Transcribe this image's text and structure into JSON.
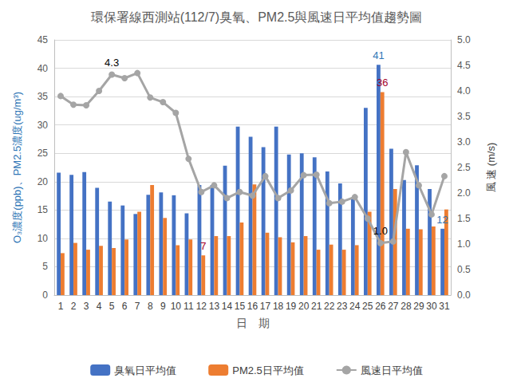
{
  "chart_data": {
    "type": "bar",
    "title": "環保署線西測站(112/7)臭氧、PM2.5與風速日平均值趨勢圖",
    "x_label": "日　期",
    "y_label": "O₃濃度(ppb)、PM2.5濃度(ug/m³)",
    "y2_label": "風 速 (m/s)",
    "categories": [
      "1",
      "2",
      "3",
      "4",
      "5",
      "6",
      "7",
      "8",
      "9",
      "10",
      "11",
      "12",
      "13",
      "14",
      "15",
      "16",
      "17",
      "18",
      "19",
      "20",
      "21",
      "22",
      "23",
      "24",
      "25",
      "26",
      "27",
      "28",
      "29",
      "30",
      "31"
    ],
    "ylim": [
      0,
      45
    ],
    "yticks": [
      0,
      5,
      10,
      15,
      20,
      25,
      30,
      35,
      40,
      45
    ],
    "y2lim": [
      0,
      5
    ],
    "y2ticks": [
      {
        "value": 0,
        "label": "0.0"
      },
      {
        "value": 0.5,
        "label": "0.5"
      },
      {
        "value": 1,
        "label": "1.0"
      },
      {
        "value": 1.5,
        "label": "1.5"
      },
      {
        "value": 2,
        "label": "2.0"
      },
      {
        "value": 2.5,
        "label": "2.5"
      },
      {
        "value": 3,
        "label": "3.0"
      },
      {
        "value": 3.5,
        "label": "3.5"
      },
      {
        "value": 4,
        "label": "4.0"
      },
      {
        "value": 4.5,
        "label": "4.5"
      },
      {
        "value": 5,
        "label": "5.0"
      }
    ],
    "grid": true,
    "legend": "bottom",
    "series": [
      {
        "name": "臭氧日平均值",
        "type": "bar",
        "color": "#4472c4",
        "values": [
          21.6,
          21.2,
          21.7,
          18.9,
          16.5,
          15.8,
          14.3,
          17.7,
          18.1,
          17.6,
          14.4,
          19.4,
          19.4,
          22.8,
          29.7,
          27.9,
          26.1,
          29.7,
          24.8,
          25.0,
          24.3,
          21.8,
          19.7,
          17.2,
          33.0,
          40.6,
          25.8,
          20.3,
          22.9,
          18.7,
          11.7
        ],
        "value_labels": [
          null,
          null,
          null,
          null,
          null,
          null,
          null,
          null,
          null,
          null,
          null,
          null,
          null,
          null,
          null,
          null,
          null,
          null,
          null,
          null,
          null,
          null,
          null,
          null,
          null,
          "41",
          null,
          null,
          null,
          null,
          "12"
        ]
      },
      {
        "name": "PM2.5日平均值",
        "type": "bar",
        "color": "#ed7d31",
        "values": [
          7.4,
          9.2,
          8.0,
          8.7,
          8.3,
          9.8,
          14.7,
          19.4,
          13.6,
          8.8,
          9.8,
          7.0,
          10.4,
          10.4,
          12.8,
          19.5,
          11.0,
          10.2,
          9.3,
          10.4,
          8.0,
          8.9,
          8.0,
          8.8,
          14.7,
          35.8,
          18.7,
          11.7,
          11.6,
          12.1,
          15.1
        ],
        "value_labels": [
          null,
          null,
          null,
          null,
          null,
          null,
          null,
          null,
          null,
          null,
          null,
          "7",
          null,
          null,
          null,
          null,
          null,
          null,
          null,
          null,
          null,
          null,
          null,
          null,
          null,
          "36",
          null,
          null,
          null,
          null,
          null
        ]
      },
      {
        "name": "風速日平均值",
        "type": "line",
        "axis": "y2",
        "color": "#a5a5a5",
        "marker": "circle",
        "line_style": "solid",
        "values": [
          3.9,
          3.73,
          3.72,
          4.0,
          4.32,
          4.25,
          4.35,
          3.87,
          3.78,
          3.57,
          2.67,
          2.02,
          2.15,
          1.9,
          2.02,
          1.95,
          2.33,
          1.9,
          2.05,
          2.35,
          2.36,
          1.8,
          1.83,
          1.92,
          1.5,
          1.02,
          1.05,
          2.8,
          2.15,
          1.58,
          2.33
        ],
        "value_labels": [
          null,
          null,
          null,
          null,
          "4.3",
          null,
          null,
          null,
          null,
          null,
          null,
          null,
          null,
          null,
          null,
          null,
          null,
          null,
          null,
          null,
          null,
          null,
          null,
          null,
          null,
          "1.0",
          null,
          null,
          null,
          null,
          null
        ]
      }
    ]
  }
}
